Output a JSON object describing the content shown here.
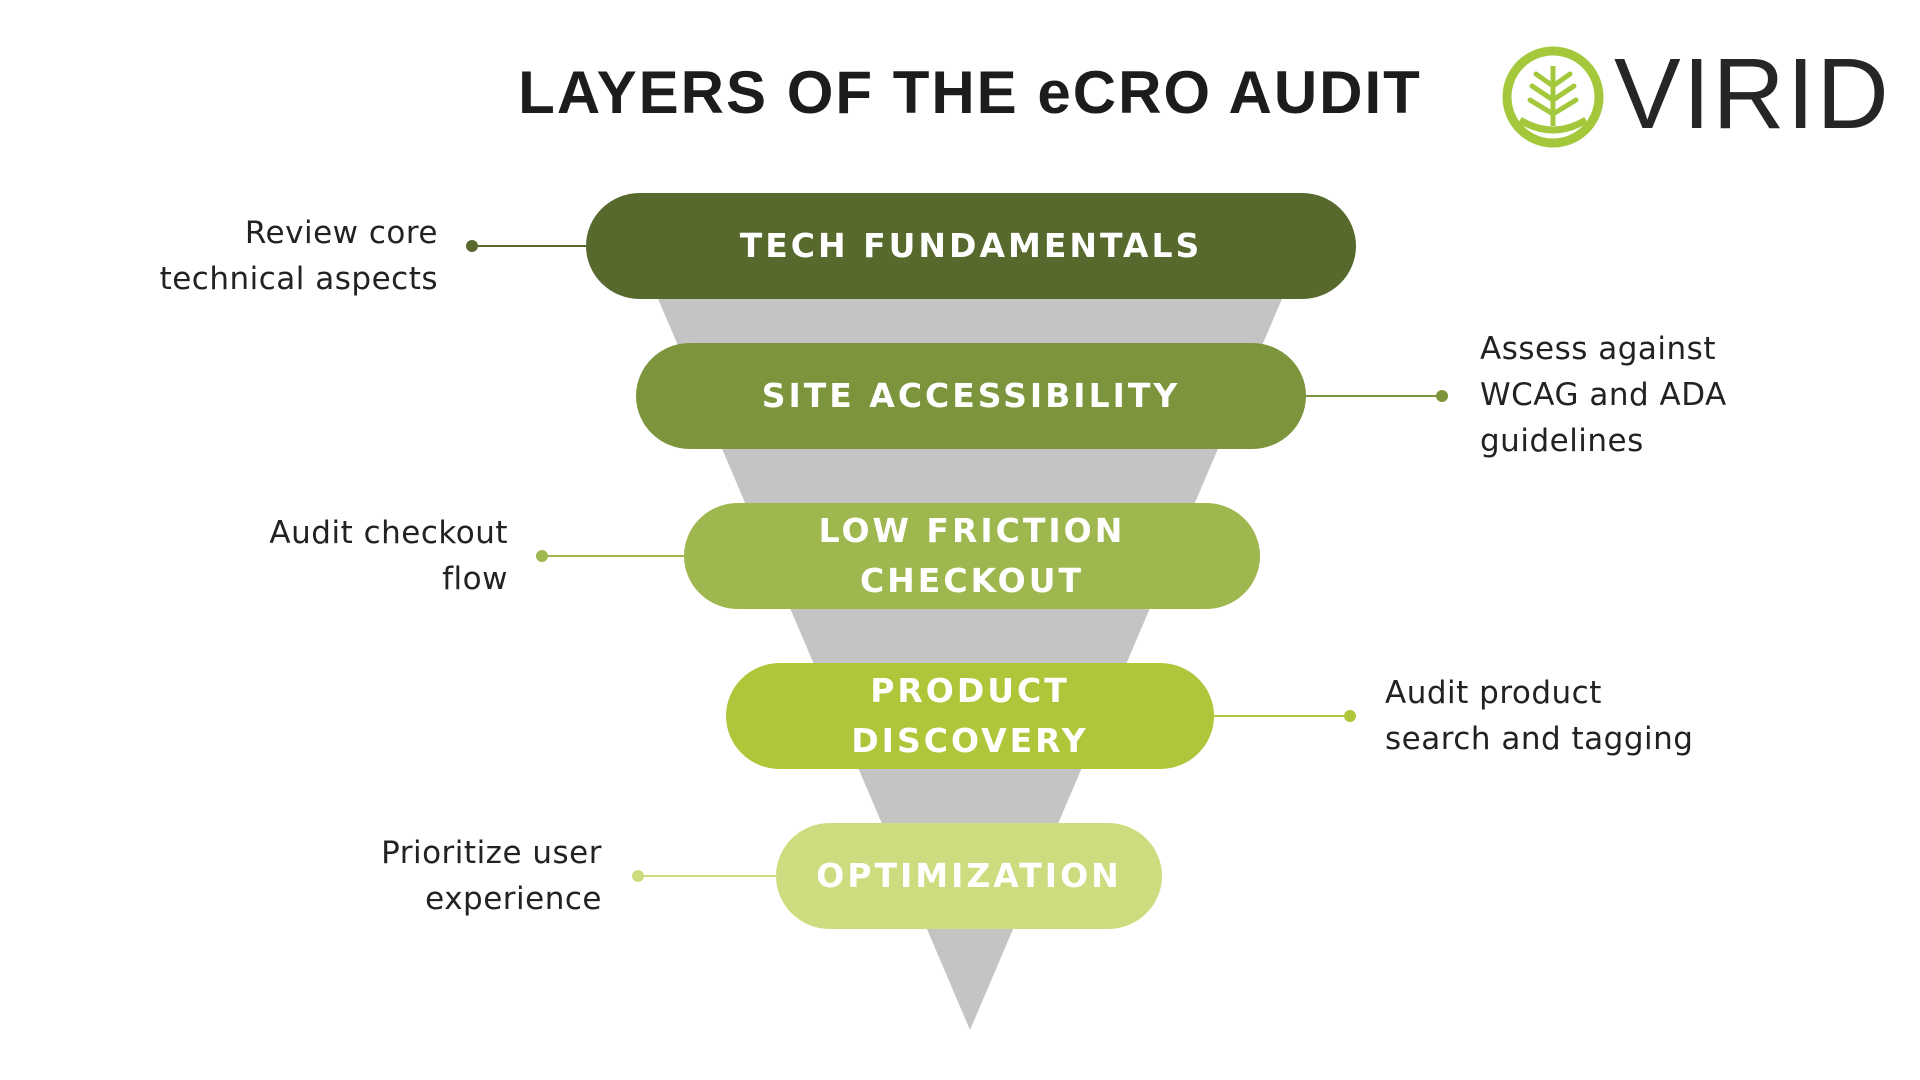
{
  "title": "LAYERS OF THE eCRO AUDIT",
  "logo": {
    "text": "VIRID",
    "icon": "leaf-circle-icon",
    "icon_color": "#a4c83b",
    "text_color": "#262626"
  },
  "funnel_color": "#c4c4c4",
  "layers": [
    {
      "label": "TECH FUNDAMENTALS",
      "lines": [
        "TECH FUNDAMENTALS"
      ],
      "color": "#57692c",
      "note": [
        "Review core",
        "technical aspects"
      ],
      "note_side": "left",
      "connector_color": "#57692c"
    },
    {
      "label": "SITE ACCESSIBILITY",
      "lines": [
        "SITE ACCESSIBILITY"
      ],
      "color": "#7c953c",
      "note": [
        "Assess against",
        "WCAG and ADA",
        "guidelines"
      ],
      "note_side": "right",
      "connector_color": "#7c953c"
    },
    {
      "label": "LOW FRICTION CHECKOUT",
      "lines": [
        "LOW FRICTION",
        "CHECKOUT"
      ],
      "color": "#9eb74e",
      "note": [
        "Audit checkout",
        "flow"
      ],
      "note_side": "left",
      "connector_color": "#9eb74e"
    },
    {
      "label": "PRODUCT DISCOVERY",
      "lines": [
        "PRODUCT",
        "DISCOVERY"
      ],
      "color": "#aec73a",
      "note": [
        "Audit product",
        "search and tagging"
      ],
      "note_side": "right",
      "connector_color": "#aec73a"
    },
    {
      "label": "OPTIMIZATION",
      "lines": [
        "OPTIMIZATION"
      ],
      "color": "#cddc7e",
      "note": [
        "Prioritize user",
        "experience"
      ],
      "note_side": "left",
      "connector_color": "#cddc7e"
    }
  ]
}
